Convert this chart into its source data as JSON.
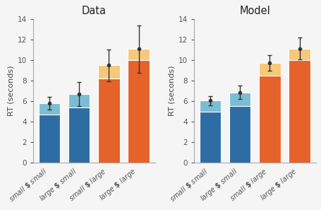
{
  "titles": [
    "Data",
    "Model"
  ],
  "categories": [
    "small § small",
    "large § small",
    "small § large",
    "large § large"
  ],
  "bar_bottom_mean": {
    "data": [
      4.7,
      5.4,
      8.25,
      10.05
    ],
    "model": [
      5.0,
      5.55,
      8.5,
      10.05
    ]
  },
  "bar_top_total": {
    "data": [
      5.8,
      6.7,
      9.5,
      11.1
    ],
    "model": [
      6.05,
      6.85,
      9.75,
      11.15
    ]
  },
  "bar_errors": {
    "data": [
      0.65,
      1.2,
      1.55,
      2.3
    ],
    "model": [
      0.42,
      0.65,
      0.75,
      1.05
    ]
  },
  "colors": {
    "blue_dark": "#2e6da4",
    "blue_light": "#7bbdd4",
    "orange_dark": "#e5622a",
    "orange_light": "#f5c87a",
    "background": "#f5f5f5",
    "axis_color": "#aaaaaa",
    "error_color": "#333333"
  },
  "ylabel": "RT (seconds)",
  "ylim": [
    0,
    14
  ],
  "yticks": [
    0,
    2,
    4,
    6,
    8,
    10,
    12,
    14
  ]
}
